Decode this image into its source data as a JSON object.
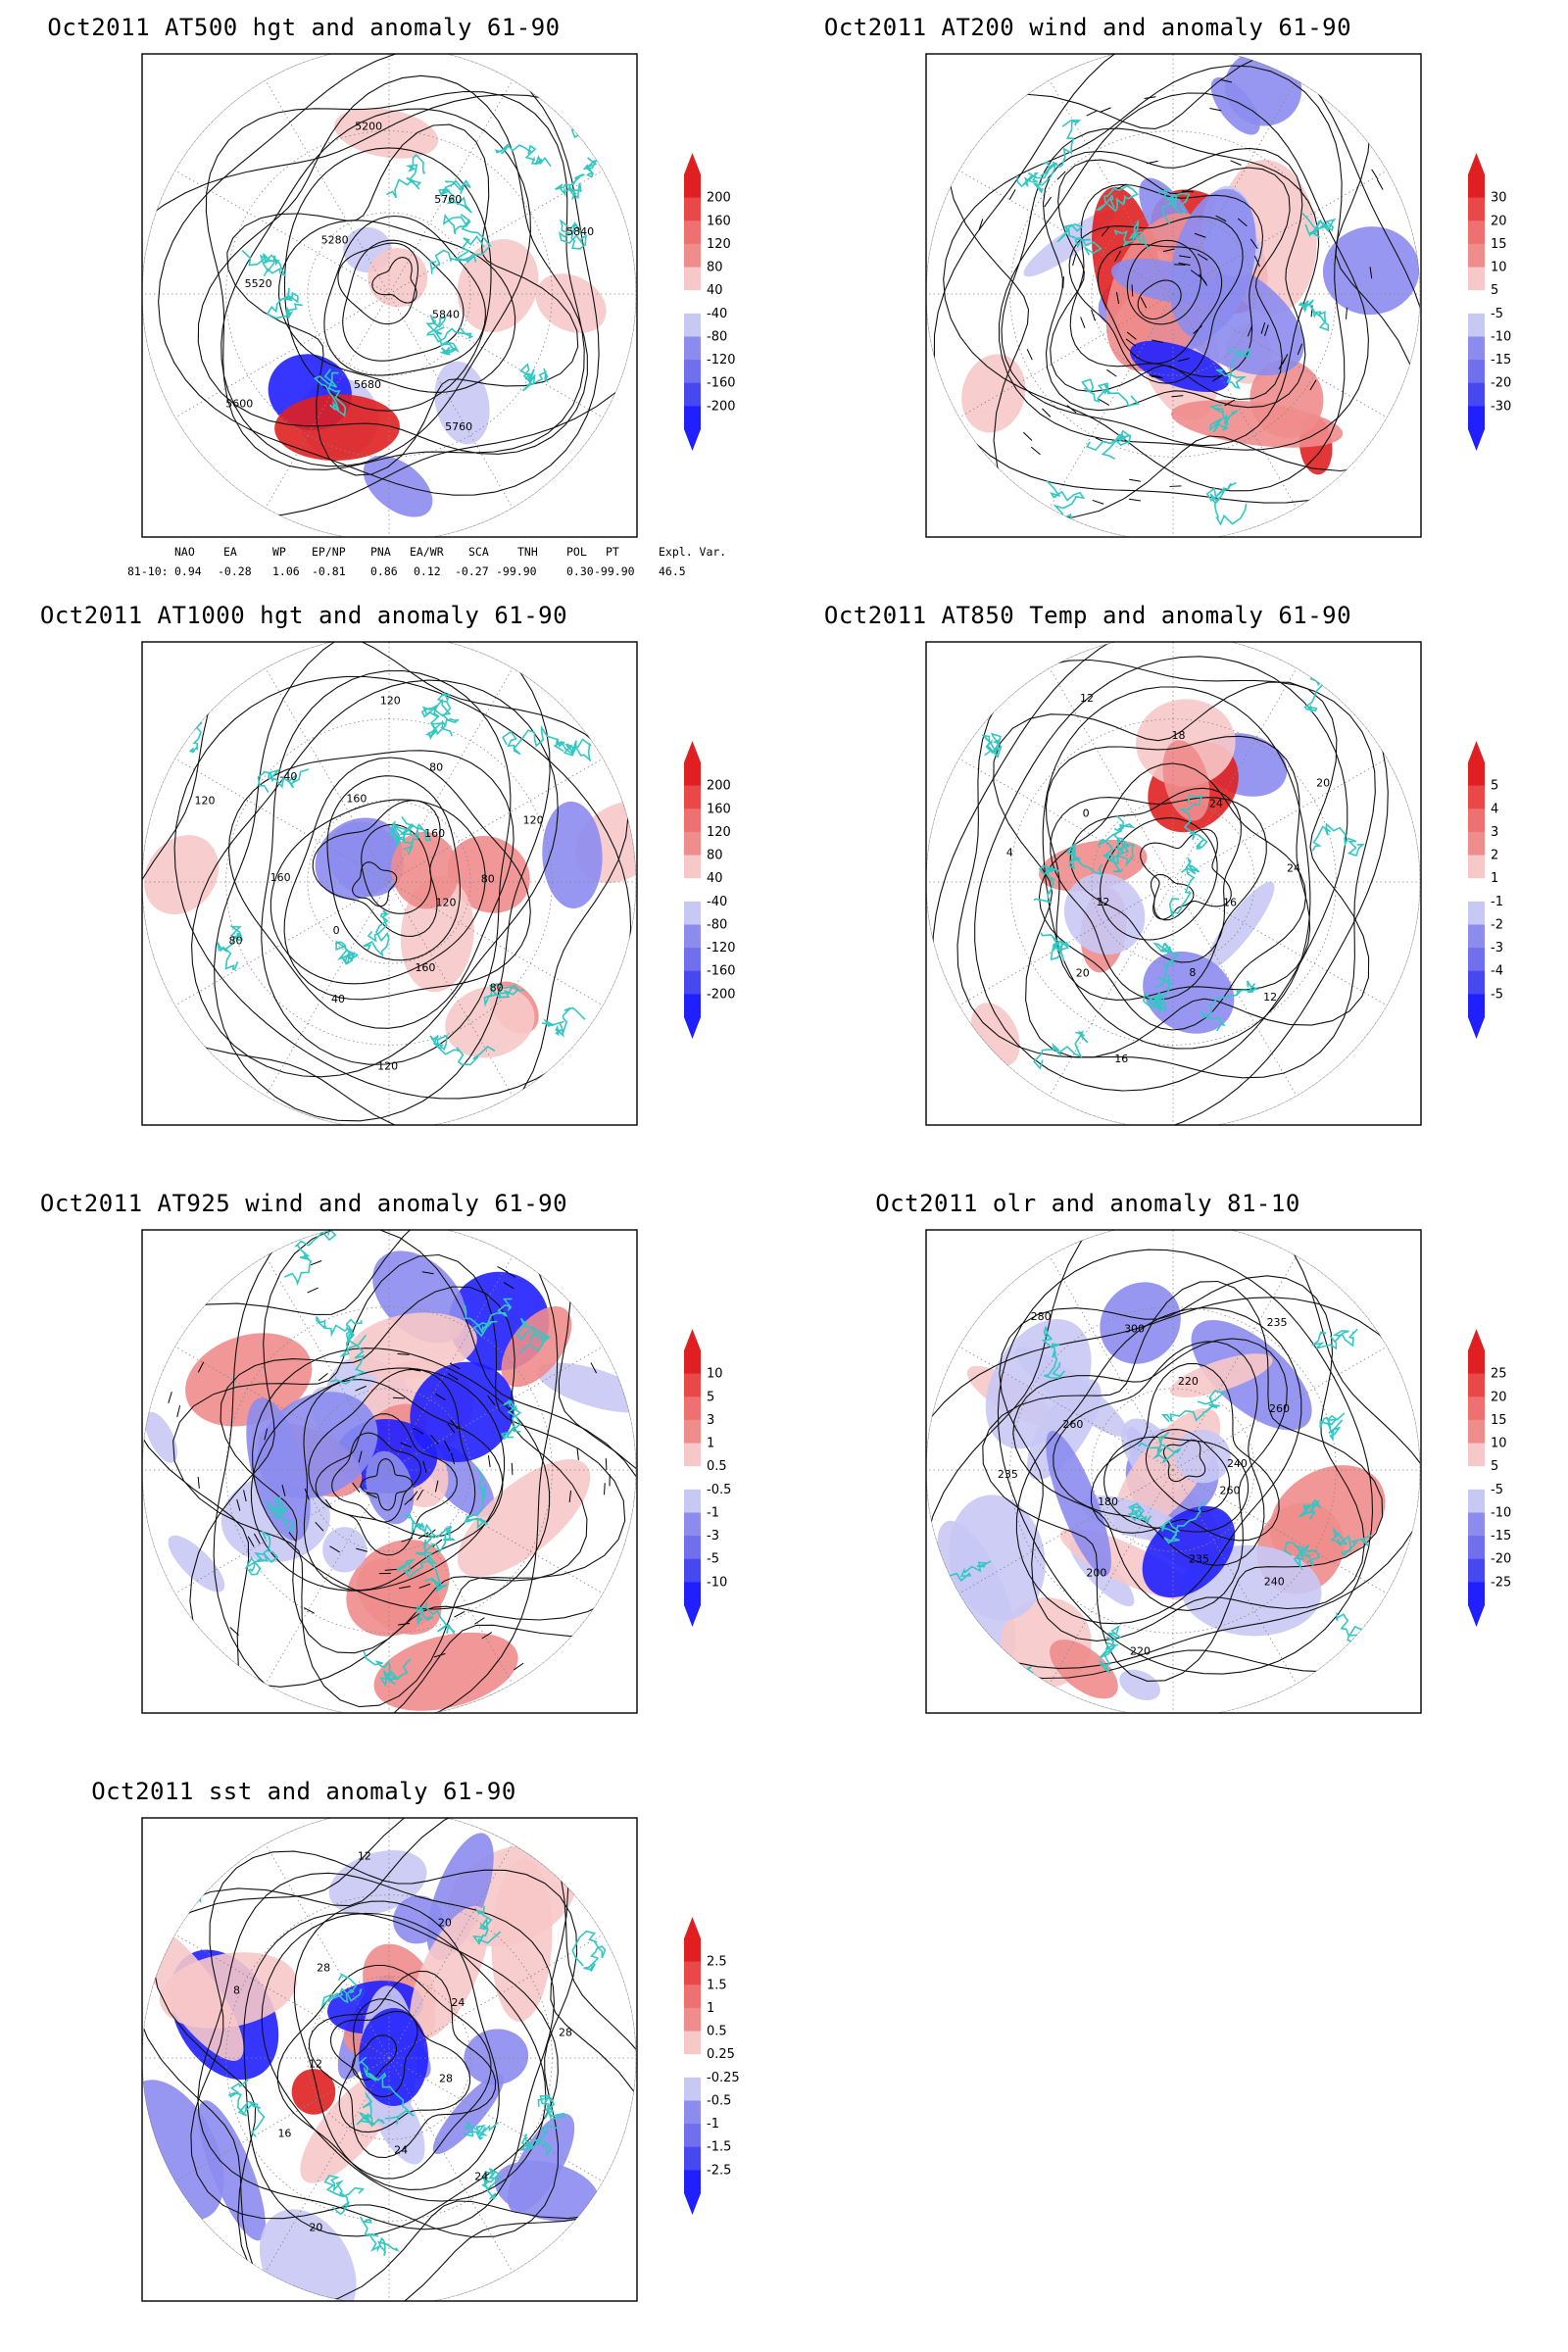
{
  "colors": {
    "coast": "#33c7c4",
    "contour": "#111111",
    "pos_light": "#f7c8c8",
    "pos_mid": "#ef8c8c",
    "pos_dark": "#e02020",
    "neg_light": "#c8c8f5",
    "neg_mid": "#8c8cef",
    "neg_dark": "#2020ff"
  },
  "panels": [
    {
      "id": "at500",
      "title": "Oct2011 AT500 hgt and anomaly 61-90",
      "colorbar": [
        "200",
        "160",
        "120",
        "80",
        "40",
        "-40",
        "-80",
        "-120",
        "-160",
        "-200"
      ],
      "contour_labels": [
        "5840",
        "5760",
        "5680",
        "5600",
        "5520",
        "5280",
        "5200",
        "5760",
        "5840"
      ],
      "full_disk": false
    },
    {
      "id": "at200",
      "title": "Oct2011 AT200 wind and anomaly 61-90",
      "colorbar": [
        "30",
        "20",
        "15",
        "10",
        "5",
        "-5",
        "-10",
        "-15",
        "-20",
        "-30"
      ],
      "contour_labels": [],
      "full_disk": true
    },
    {
      "id": "at1000",
      "title": "Oct2011 AT1000 hgt and anomaly 61-90",
      "colorbar": [
        "200",
        "160",
        "120",
        "80",
        "40",
        "-40",
        "-80",
        "-120",
        "-160",
        "-200"
      ],
      "contour_labels": [
        "120",
        "80",
        "160",
        "120",
        "40",
        "0",
        "80",
        "160",
        "120",
        "-40",
        "160",
        "120",
        "80",
        "160",
        "120",
        "80"
      ],
      "full_disk": false
    },
    {
      "id": "at850",
      "title": "Oct2011 AT850 Temp and anomaly 61-90",
      "colorbar": [
        "5",
        "4",
        "3",
        "2",
        "1",
        "-1",
        "-2",
        "-3",
        "-4",
        "-5"
      ],
      "contour_labels": [
        "16",
        "12",
        "8",
        "16",
        "20",
        "12",
        "4",
        "0",
        "12",
        "18",
        "24",
        "20",
        "24"
      ],
      "full_disk": false
    },
    {
      "id": "at925",
      "title": "Oct2011 AT925 wind and anomaly 61-90",
      "colorbar": [
        "10",
        "5",
        "3",
        "1",
        "0.5",
        "-0.5",
        "-1",
        "-3",
        "-5",
        "-10"
      ],
      "contour_labels": [],
      "full_disk": true
    },
    {
      "id": "olr",
      "title": "Oct2011 olr and anomaly 81-10",
      "colorbar": [
        "25",
        "20",
        "15",
        "10",
        "5",
        "-5",
        "-10",
        "-15",
        "-20",
        "-25"
      ],
      "contour_labels": [
        "260",
        "240",
        "235",
        "220",
        "200",
        "180",
        "235",
        "260",
        "280",
        "300",
        "220",
        "235",
        "260",
        "240"
      ],
      "full_disk": true
    },
    {
      "id": "sst",
      "title": "Oct2011 sst and anomaly 61-90",
      "colorbar": [
        "2.5",
        "1.5",
        "1",
        "0.5",
        "0.25",
        "-0.25",
        "-0.5",
        "-1",
        "-1.5",
        "-2.5"
      ],
      "contour_labels": [
        "28",
        "24",
        "24",
        "20",
        "16",
        "12",
        "8",
        "28",
        "12",
        "20",
        "24",
        "28"
      ],
      "full_disk": true
    }
  ],
  "indices": {
    "headers": [
      "NAO",
      "EA",
      "WP",
      "EP/NP",
      "PNA",
      "EA/WR",
      "SCA",
      "TNH",
      "POL",
      "PT",
      "Expl. Var."
    ],
    "row_label": "81-10:",
    "values": [
      "0.94",
      "-0.28",
      "1.06",
      "-0.81",
      "0.86",
      "0.12",
      "-0.27",
      "-99.90",
      "0.30",
      "-99.90",
      "46.5"
    ]
  }
}
